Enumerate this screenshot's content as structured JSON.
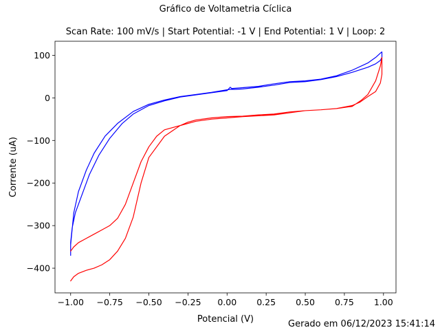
{
  "suptitle": "Gráfico de Voltametria Cíclica",
  "footer": "Gerado em 06/12/2023 15:41:14",
  "chart_data": {
    "type": "line",
    "title": "Scan Rate: 100 mV/s | Start Potential: -1 V | End Potential: 1 V | Loop: 2",
    "xlabel": "Potencial (V)",
    "ylabel": "Corrente (uA)",
    "xlim": [
      -1.1,
      1.08
    ],
    "ylim": [
      -458,
      133
    ],
    "xticks": [
      -1.0,
      -0.75,
      -0.5,
      -0.25,
      0.0,
      0.25,
      0.5,
      0.75,
      1.0
    ],
    "xtick_labels": [
      "−1.00",
      "−0.75",
      "−0.50",
      "−0.25",
      "0.00",
      "0.25",
      "0.50",
      "0.75",
      "1.00"
    ],
    "yticks": [
      -400,
      -300,
      -200,
      -100,
      0,
      100
    ],
    "ytick_labels": [
      "−400",
      "−300",
      "−200",
      "−100",
      "0",
      "100"
    ],
    "grid": false,
    "legend": false,
    "series": [
      {
        "color": "#0000ff",
        "x": [
          -1.0,
          -1.0,
          -0.99,
          -0.97,
          -0.93,
          -0.88,
          -0.82,
          -0.75,
          -0.67,
          -0.6,
          -0.5,
          -0.4,
          -0.3,
          -0.2,
          -0.1,
          0.0,
          0.02,
          0.03,
          0.1,
          0.2,
          0.3,
          0.4,
          0.5,
          0.6,
          0.7,
          0.8,
          0.9,
          0.95,
          0.98,
          0.99,
          0.99,
          0.98,
          0.95,
          0.9,
          0.8,
          0.7,
          0.6,
          0.5,
          0.4,
          0.3,
          0.2,
          0.1,
          0.05,
          0.02,
          0.0,
          -0.1,
          -0.2,
          -0.3,
          -0.4,
          -0.5,
          -0.6,
          -0.7,
          -0.78,
          -0.85,
          -0.9,
          -0.95,
          -0.98,
          -1.0
        ],
        "y": [
          -370,
          -340,
          -305,
          -270,
          -230,
          -180,
          -135,
          -95,
          -60,
          -38,
          -18,
          -7,
          2,
          7,
          12,
          17,
          25,
          22,
          24,
          27,
          33,
          38,
          40,
          44,
          52,
          65,
          82,
          95,
          105,
          108,
          95,
          88,
          80,
          72,
          60,
          50,
          43,
          38,
          36,
          30,
          25,
          21,
          20,
          20,
          19,
          13,
          8,
          3,
          -5,
          -15,
          -32,
          -60,
          -90,
          -130,
          -170,
          -220,
          -270,
          -345
        ]
      },
      {
        "color": "#ff0000",
        "x": [
          -1.0,
          -0.98,
          -0.95,
          -0.9,
          -0.85,
          -0.8,
          -0.75,
          -0.7,
          -0.65,
          -0.6,
          -0.55,
          -0.5,
          -0.4,
          -0.3,
          -0.25,
          -0.2,
          -0.1,
          0.0,
          0.1,
          0.2,
          0.3,
          0.4,
          0.5,
          0.6,
          0.7,
          0.8,
          0.85,
          0.9,
          0.95,
          0.98,
          0.99,
          0.99,
          0.98,
          0.95,
          0.9,
          0.86,
          0.8,
          0.7,
          0.6,
          0.5,
          0.4,
          0.3,
          0.2,
          0.1,
          0.0,
          -0.1,
          -0.2,
          -0.3,
          -0.4,
          -0.45,
          -0.5,
          -0.55,
          -0.6,
          -0.65,
          -0.7,
          -0.75,
          -0.8,
          -0.85,
          -0.9,
          -0.95,
          -0.98,
          -1.0
        ],
        "y": [
          -430,
          -420,
          -412,
          -405,
          -400,
          -392,
          -380,
          -360,
          -330,
          -280,
          -200,
          -140,
          -90,
          -65,
          -57,
          -52,
          -47,
          -44,
          -43,
          -40,
          -38,
          -33,
          -30,
          -28,
          -25,
          -18,
          -10,
          3,
          15,
          35,
          55,
          95,
          75,
          40,
          8,
          -5,
          -20,
          -25,
          -28,
          -30,
          -35,
          -40,
          -42,
          -44,
          -47,
          -50,
          -55,
          -65,
          -75,
          -90,
          -115,
          -150,
          -200,
          -250,
          -283,
          -300,
          -310,
          -320,
          -330,
          -340,
          -350,
          -360
        ]
      }
    ]
  }
}
